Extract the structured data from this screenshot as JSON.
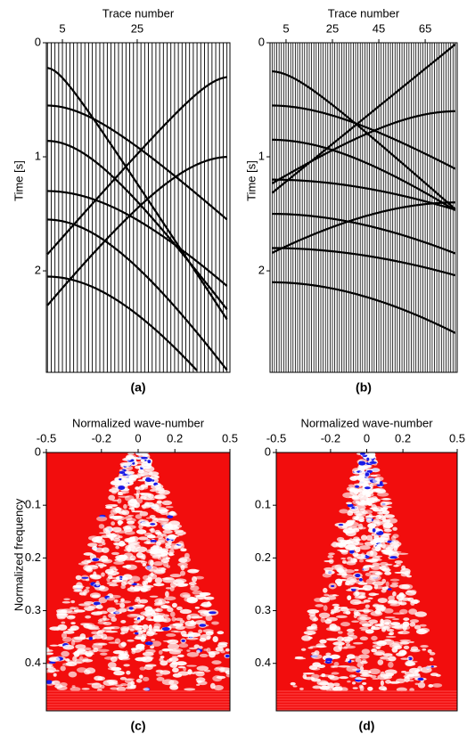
{
  "chart_data": [
    {
      "type": "wiggle",
      "xlabel": "Trace number",
      "ylabel": "Time [s]",
      "caption": "(a)",
      "xlim": [
        0.7,
        49.8
      ],
      "xticks": [
        5,
        25
      ],
      "ylim": [
        0,
        2.89
      ],
      "yticks": [
        0,
        1,
        2
      ]
    },
    {
      "type": "wiggle",
      "xlabel": "Trace number",
      "ylabel": "Time [s]",
      "caption": "(b)",
      "xlim": [
        -1.9,
        78.8
      ],
      "xticks": [
        5,
        25,
        45,
        65
      ],
      "ylim": [
        0,
        2.89
      ],
      "yticks": [
        0,
        1,
        2
      ]
    },
    {
      "type": "spectrum",
      "xlabel": "Normalized wave-number",
      "ylabel": "Normalized frequency",
      "caption": "(c)",
      "xlim": [
        -0.5,
        0.5
      ],
      "xticks": [
        -0.5,
        -0.2,
        0,
        0.2,
        0.5
      ],
      "ylim": [
        0,
        0.49
      ],
      "yticks": [
        0,
        0.1,
        0.2,
        0.3,
        0.4
      ]
    },
    {
      "type": "spectrum",
      "xlabel": "Normalized wave-number",
      "caption": "(d)",
      "xlim": [
        -0.5,
        0.5
      ],
      "xticks": [
        -0.5,
        -0.2,
        0,
        0.2,
        0.5
      ],
      "ylim": [
        0,
        0.49
      ],
      "yticks": [
        0,
        0.1,
        0.2,
        0.3,
        0.4
      ]
    }
  ]
}
